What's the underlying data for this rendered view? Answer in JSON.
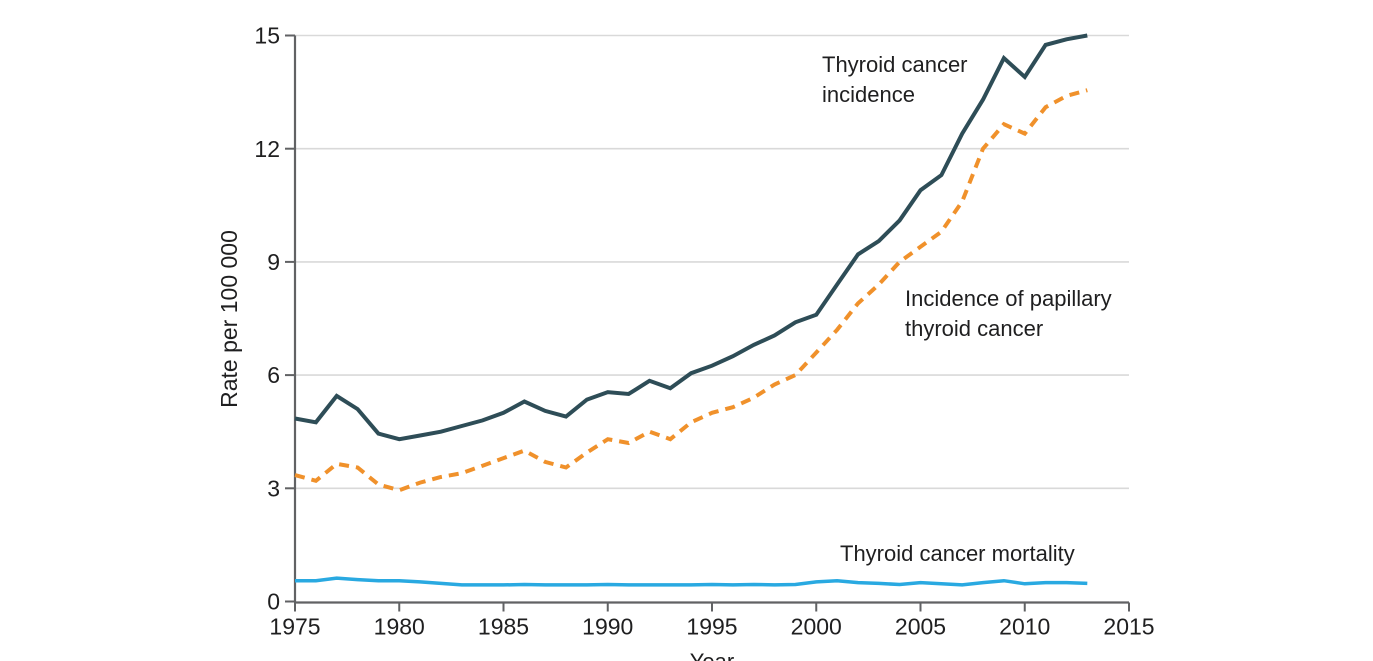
{
  "chart_data": {
    "type": "line",
    "title": "",
    "xlabel": "Year",
    "ylabel": "Rate per 100 000",
    "xlim": [
      1975,
      2015
    ],
    "ylim": [
      0,
      15
    ],
    "xticks": [
      1975,
      1980,
      1985,
      1990,
      1995,
      2000,
      2005,
      2010,
      2015
    ],
    "yticks": [
      0,
      3,
      6,
      9,
      12,
      15
    ],
    "grid": "horizontal",
    "gridline_color": "#d9d9d9",
    "axis_color": "#616264",
    "text_color": "#1f1f20",
    "legend_position": "inline-annotations",
    "x": [
      1975,
      1976,
      1977,
      1978,
      1979,
      1980,
      1981,
      1982,
      1983,
      1984,
      1985,
      1986,
      1987,
      1988,
      1989,
      1990,
      1991,
      1992,
      1993,
      1994,
      1995,
      1996,
      1997,
      1998,
      1999,
      2000,
      2001,
      2002,
      2003,
      2004,
      2005,
      2006,
      2007,
      2008,
      2009,
      2010,
      2011,
      2012,
      2013
    ],
    "series": [
      {
        "name": "Thyroid cancer incidence",
        "color": "#2e4d57",
        "style": "solid",
        "values": [
          4.85,
          4.75,
          5.45,
          5.1,
          4.45,
          4.3,
          4.4,
          4.5,
          4.65,
          4.8,
          5.0,
          5.3,
          5.05,
          4.9,
          5.35,
          5.55,
          5.5,
          5.85,
          5.65,
          6.05,
          6.25,
          6.5,
          6.8,
          7.05,
          7.4,
          7.6,
          8.4,
          9.2,
          9.55,
          10.1,
          10.9,
          11.3,
          12.4,
          13.3,
          14.4,
          13.9,
          14.75,
          14.9,
          15.0
        ]
      },
      {
        "name": "Incidence of papillary thyroid cancer",
        "color": "#f0912b",
        "style": "dashed",
        "values": [
          3.35,
          3.2,
          3.65,
          3.55,
          3.1,
          2.95,
          3.15,
          3.3,
          3.4,
          3.6,
          3.8,
          4.0,
          3.7,
          3.55,
          3.95,
          4.3,
          4.2,
          4.5,
          4.3,
          4.75,
          5.0,
          5.15,
          5.4,
          5.75,
          6.0,
          6.6,
          7.2,
          7.9,
          8.4,
          9.0,
          9.4,
          9.8,
          10.6,
          12.0,
          12.65,
          12.4,
          13.1,
          13.4,
          13.55
        ]
      },
      {
        "name": "Thyroid cancer mortality",
        "color": "#29a9e1",
        "style": "solid",
        "values": [
          0.55,
          0.55,
          0.62,
          0.58,
          0.55,
          0.55,
          0.52,
          0.48,
          0.44,
          0.44,
          0.44,
          0.45,
          0.44,
          0.44,
          0.44,
          0.45,
          0.44,
          0.44,
          0.44,
          0.44,
          0.45,
          0.44,
          0.45,
          0.44,
          0.45,
          0.52,
          0.55,
          0.5,
          0.48,
          0.45,
          0.5,
          0.47,
          0.44,
          0.5,
          0.55,
          0.47,
          0.5,
          0.5,
          0.48
        ]
      }
    ]
  },
  "annotations": {
    "incidence": {
      "lines": [
        "Thyroid cancer",
        "incidence"
      ]
    },
    "papillary": {
      "lines": [
        "Incidence of papillary",
        "thyroid cancer"
      ]
    },
    "mortality": {
      "lines": [
        "Thyroid cancer mortality"
      ]
    }
  },
  "axes": {
    "y_title": "Rate per 100 000",
    "x_title": "Year"
  }
}
